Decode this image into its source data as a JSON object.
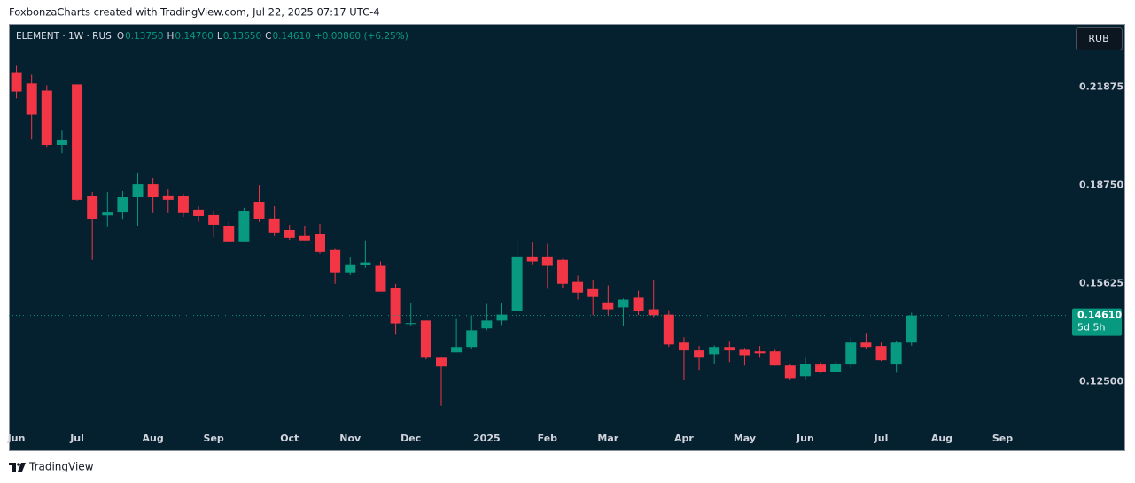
{
  "page": {
    "header": "FoxbonzaCharts created with TradingView.com, Jul 22, 2025 07:17 UTC-4",
    "footer": "TradingView"
  },
  "chart_data": {
    "type": "candlestick",
    "legend": {
      "symbol": "ELEMENT · 1W · RUS",
      "fields": [
        {
          "key": "O",
          "value": "0.13750"
        },
        {
          "key": "H",
          "value": "0.14700"
        },
        {
          "key": "L",
          "value": "0.13650"
        },
        {
          "key": "C",
          "value": "0.14610"
        }
      ],
      "change": "+0.00860 (+6.25%)"
    },
    "currency": "RUB",
    "up_color": "#089981",
    "down_color": "#f23645",
    "open": [
      0.2235,
      0.2199,
      0.2176,
      0.2003,
      0.2196,
      0.184,
      0.178,
      0.1789,
      0.1837,
      0.1879,
      0.1843,
      0.184,
      0.1798,
      0.1781,
      0.1745,
      0.1697,
      0.1823,
      0.177,
      0.1733,
      0.1714,
      0.1719,
      0.1669,
      0.1596,
      0.1621,
      0.1619,
      0.1548,
      0.1434,
      0.1445,
      0.1327,
      0.1344,
      0.1361,
      0.142,
      0.1445,
      0.1476,
      0.1649,
      0.1649,
      0.1638,
      0.1568,
      0.1545,
      0.1503,
      0.1487,
      0.1518,
      0.1481,
      0.1464,
      0.1375,
      0.135,
      0.1338,
      0.1361,
      0.1352,
      0.1347,
      0.1347,
      0.1302,
      0.1268,
      0.1305,
      0.1282,
      0.1305,
      0.1375,
      0.1364,
      0.1305,
      0.1375
    ],
    "high": [
      0.2255,
      0.2227,
      0.2193,
      0.205,
      0.2196,
      0.1854,
      0.1854,
      0.1857,
      0.1913,
      0.1899,
      0.1862,
      0.1849,
      0.1809,
      0.1792,
      0.1759,
      0.1803,
      0.1876,
      0.1809,
      0.175,
      0.1747,
      0.1753,
      0.1675,
      0.1647,
      0.17,
      0.1633,
      0.1562,
      0.1501,
      0.1445,
      0.1327,
      0.145,
      0.1462,
      0.1498,
      0.1501,
      0.1703,
      0.1694,
      0.1689,
      0.1641,
      0.1588,
      0.1574,
      0.1557,
      0.1515,
      0.154,
      0.1574,
      0.1478,
      0.1392,
      0.1364,
      0.1366,
      0.1378,
      0.1358,
      0.1364,
      0.1352,
      0.1305,
      0.1327,
      0.1313,
      0.1313,
      0.1392,
      0.1406,
      0.1375,
      0.138,
      0.147
    ],
    "low": [
      0.2151,
      0.2022,
      0.1997,
      0.1977,
      0.1826,
      0.1638,
      0.1742,
      0.1766,
      0.1745,
      0.1787,
      0.1787,
      0.1775,
      0.1759,
      0.1711,
      0.1697,
      0.1697,
      0.1759,
      0.1714,
      0.1702,
      0.17,
      0.1658,
      0.1562,
      0.159,
      0.1613,
      0.1537,
      0.14,
      0.1428,
      0.1322,
      0.1174,
      0.1344,
      0.1355,
      0.1414,
      0.1431,
      0.1473,
      0.1624,
      0.1546,
      0.1548,
      0.1512,
      0.1462,
      0.1462,
      0.1428,
      0.1462,
      0.1456,
      0.1361,
      0.1257,
      0.1288,
      0.1305,
      0.1313,
      0.1302,
      0.1327,
      0.1302,
      0.1257,
      0.1257,
      0.1277,
      0.1279,
      0.1294,
      0.1355,
      0.1316,
      0.1279,
      0.1365
    ],
    "close": [
      0.2173,
      0.21,
      0.2003,
      0.202,
      0.1829,
      0.1767,
      0.1789,
      0.1837,
      0.1879,
      0.1837,
      0.1829,
      0.1787,
      0.1778,
      0.175,
      0.1697,
      0.1792,
      0.1767,
      0.1725,
      0.1708,
      0.17,
      0.1663,
      0.1596,
      0.1624,
      0.163,
      0.1537,
      0.1436,
      0.1437,
      0.1327,
      0.1299,
      0.1361,
      0.1414,
      0.1445,
      0.1464,
      0.1649,
      0.1633,
      0.1619,
      0.1562,
      0.1534,
      0.152,
      0.1481,
      0.1512,
      0.1476,
      0.1462,
      0.1369,
      0.135,
      0.1327,
      0.1361,
      0.135,
      0.1335,
      0.1341,
      0.1302,
      0.1262,
      0.1307,
      0.1282,
      0.1307,
      0.1375,
      0.1361,
      0.1319,
      0.1375,
      0.1461
    ],
    "xlim": [
      -0.5,
      69
    ],
    "xticks": [
      {
        "value": 0,
        "label": "Jun"
      },
      {
        "value": 4,
        "label": "Jul"
      },
      {
        "value": 9,
        "label": "Aug"
      },
      {
        "value": 13,
        "label": "Sep"
      },
      {
        "value": 18,
        "label": "Oct"
      },
      {
        "value": 22,
        "label": "Nov"
      },
      {
        "value": 26,
        "label": "Dec"
      },
      {
        "value": 31,
        "label": "2025"
      },
      {
        "value": 35,
        "label": "Feb"
      },
      {
        "value": 39,
        "label": "Mar"
      },
      {
        "value": 44,
        "label": "Apr"
      },
      {
        "value": 48,
        "label": "May"
      },
      {
        "value": 52,
        "label": "Jun"
      },
      {
        "value": 57,
        "label": "Jul"
      },
      {
        "value": 61,
        "label": "Aug"
      },
      {
        "value": 65,
        "label": "Sep"
      }
    ],
    "ylim": [
      0.11,
      0.238
    ],
    "yticks": [
      0.21875,
      {
        "value": 0.1875,
        "label": "0.18750"
      },
      0.15625,
      {
        "value": 0.125,
        "label": "0.12500"
      }
    ],
    "last_price": {
      "value": 0.1461,
      "label": "0.14610",
      "countdown": "5d 5h"
    }
  }
}
